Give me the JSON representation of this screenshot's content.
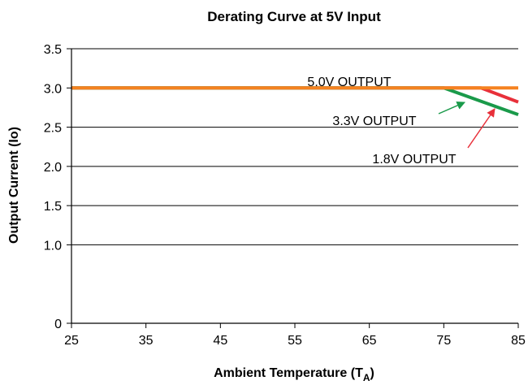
{
  "chart_data": {
    "type": "line",
    "title": "Derating Curve at 5V Input",
    "xlabel": "Ambient Temperature (T",
    "xlabel_sub": "A",
    "xlabel_end": ")",
    "ylabel": "Output Current (Io)",
    "xlim": [
      25,
      85
    ],
    "ylim": [
      0,
      3.5
    ],
    "x_ticks": [
      25,
      35,
      45,
      55,
      65,
      75,
      85
    ],
    "y_ticks": [
      0,
      1.0,
      1.5,
      2.0,
      2.5,
      3.0,
      3.5
    ],
    "x_tick_labels": [
      "25",
      "35",
      "45",
      "55",
      "65",
      "75",
      "85"
    ],
    "y_tick_labels": [
      "0",
      "1.0",
      "1.5",
      "2.0",
      "2.5",
      "3.0",
      "3.5"
    ],
    "grid": "horizontal",
    "series": [
      {
        "name": "1.8V OUTPUT",
        "color": "#e8303a",
        "x": [
          25,
          80,
          85
        ],
        "y": [
          3.0,
          3.0,
          2.82
        ]
      },
      {
        "name": "3.3V OUTPUT",
        "color": "#1a9a4a",
        "x": [
          25,
          75,
          85
        ],
        "y": [
          3.0,
          3.0,
          2.66
        ]
      },
      {
        "name": "5.0V OUTPUT",
        "color": "#f58220",
        "x": [
          25,
          85
        ],
        "y": [
          3.0,
          3.0
        ]
      }
    ],
    "annotations": [
      {
        "text": "5.0V OUTPUT"
      },
      {
        "text": "3.3V OUTPUT"
      },
      {
        "text": "1.8V OUTPUT"
      }
    ]
  }
}
